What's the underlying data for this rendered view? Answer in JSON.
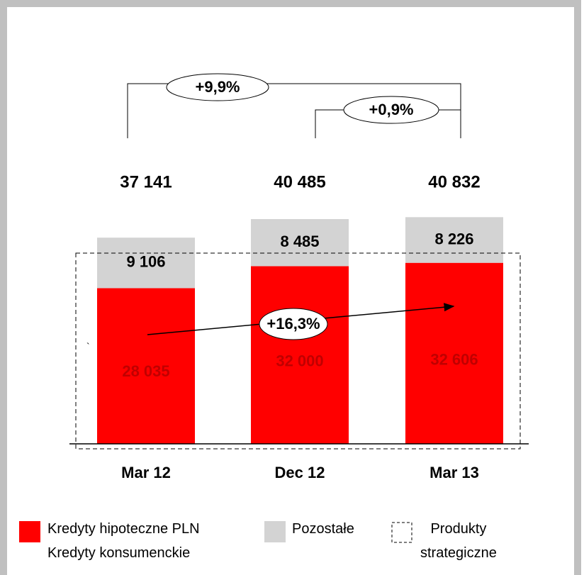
{
  "chart_data": {
    "type": "stacked_bar",
    "categories": [
      "Mar 12",
      "Dec 12",
      "Mar 13"
    ],
    "series": [
      {
        "name": "Kredyty hipoteczne PLN\nKredyty konsumenckie",
        "color": "#ff0000",
        "values": [
          28035,
          32000,
          32606
        ],
        "value_labels": [
          "28 035",
          "32 000",
          "32 606"
        ]
      },
      {
        "name": "Pozostałe",
        "color": "#d3d3d3",
        "values": [
          9106,
          8485,
          8226
        ],
        "value_labels": [
          "9 106",
          "8 485",
          "8 226"
        ]
      }
    ],
    "totals": [
      {
        "value": 37141,
        "label": "37 141"
      },
      {
        "value": 40485,
        "label": "40 485"
      },
      {
        "value": 40832,
        "label": "40 832"
      }
    ],
    "annotations": [
      "+9,9%",
      "+0,9%",
      "+16,3%",
      "`"
    ],
    "strategic_label": "Produkty\nstrategiczne"
  }
}
